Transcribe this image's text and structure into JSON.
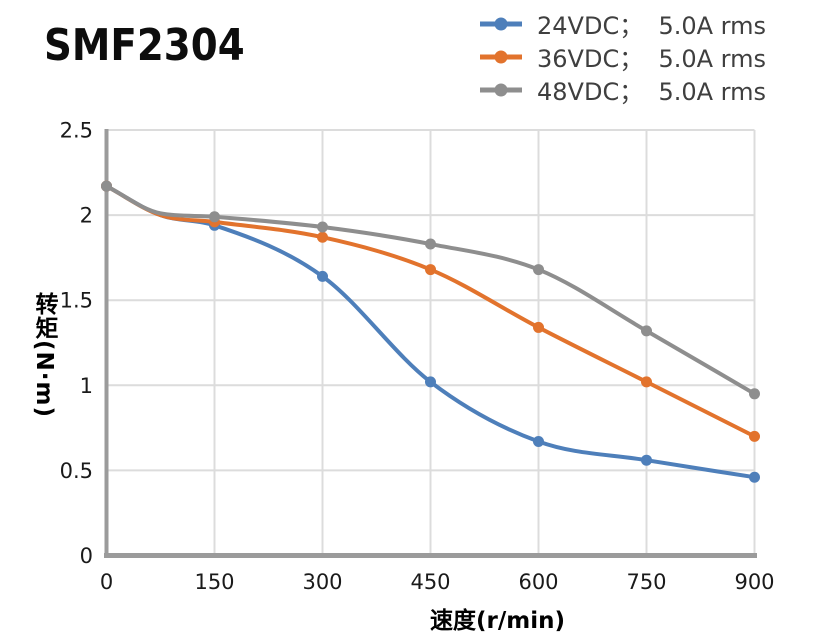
{
  "chart_data": {
    "type": "line",
    "title": "SMF2304",
    "xlabel": "速度(r/min)",
    "ylabel": "转矩(N·m)",
    "xlim": [
      0,
      900
    ],
    "ylim": [
      0,
      2.5
    ],
    "x_ticks": [
      0,
      150,
      300,
      450,
      600,
      750,
      900
    ],
    "y_ticks": [
      0,
      0.5,
      1,
      1.5,
      2,
      2.5
    ],
    "grid": true,
    "legend_position": "top-right",
    "marker_x": [
      0,
      150,
      300,
      450,
      600,
      750,
      900
    ],
    "series": [
      {
        "name": "24VDC；  5.0A rms",
        "color": "#4e7fba",
        "points": [
          [
            0,
            2.17
          ],
          [
            75,
            2.0
          ],
          [
            150,
            1.94
          ],
          [
            300,
            1.64
          ],
          [
            450,
            1.02
          ],
          [
            600,
            0.67
          ],
          [
            750,
            0.56
          ],
          [
            900,
            0.46
          ]
        ]
      },
      {
        "name": "36VDC；  5.0A rms",
        "color": "#e2732d",
        "points": [
          [
            0,
            2.17
          ],
          [
            75,
            2.0
          ],
          [
            150,
            1.96
          ],
          [
            300,
            1.87
          ],
          [
            450,
            1.68
          ],
          [
            600,
            1.34
          ],
          [
            750,
            1.02
          ],
          [
            900,
            0.7
          ]
        ]
      },
      {
        "name": "48VDC；  5.0A rms",
        "color": "#8e8e8e",
        "points": [
          [
            0,
            2.17
          ],
          [
            75,
            2.01
          ],
          [
            150,
            1.99
          ],
          [
            300,
            1.93
          ],
          [
            450,
            1.83
          ],
          [
            600,
            1.68
          ],
          [
            750,
            1.32
          ],
          [
            900,
            0.95
          ]
        ]
      }
    ],
    "colors": {
      "background": "#ffffff",
      "gridline": "#dcdcdc",
      "axis": "#9b9b9b",
      "tick_label": "#1a1a1a",
      "axis_title": "#000000",
      "legend_text": "#3f3f3f",
      "title": "#0d0d0d"
    }
  }
}
